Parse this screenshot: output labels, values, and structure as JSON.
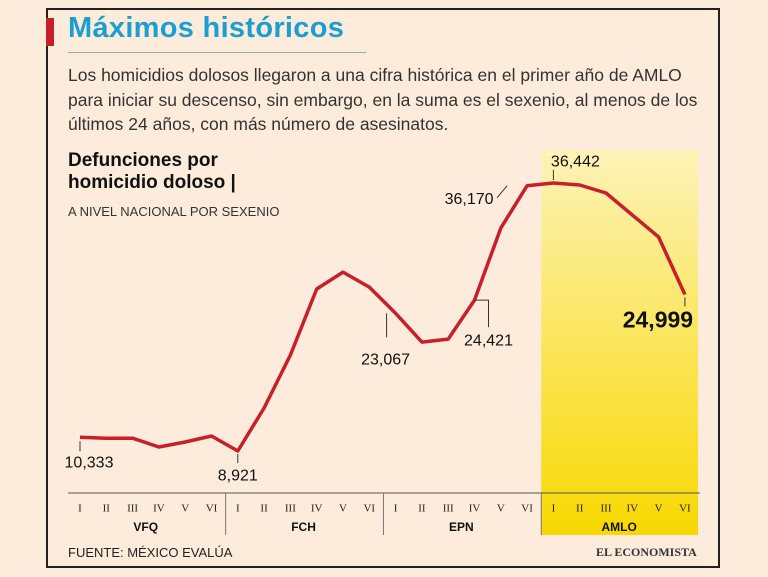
{
  "chart_data": {
    "type": "line",
    "title": "Máximos históricos",
    "subtitle": "Los homicidios dolosos llegaron a una cifra histórica en el primer año de AMLO para iniciar su descenso, sin embargo, en la suma es el sexenio, al menos de los últimos 24 años, con más número de asesinatos.",
    "chart_title": "Defunciones por homicidio doloso |",
    "chart_subtitle": "A NIVEL NACIONAL POR SEXENIO",
    "source": "FUENTE: MÉXICO EVALÚA",
    "brand": "EL ECONOMISTA",
    "categories": [
      "I",
      "II",
      "III",
      "IV",
      "V",
      "VI",
      "I",
      "II",
      "III",
      "IV",
      "V",
      "VI",
      "I",
      "II",
      "III",
      "IV",
      "V",
      "VI",
      "I",
      "II",
      "III",
      "IV",
      "V",
      "VI"
    ],
    "groups": [
      "VFQ",
      "FCH",
      "EPN",
      "AMLO"
    ],
    "highlight": "AMLO",
    "series": [
      {
        "name": "Defunciones por homicidio doloso",
        "color": "#c8202a",
        "values": [
          10333,
          10240,
          10240,
          9330,
          9850,
          10460,
          8921,
          13340,
          18780,
          25560,
          27300,
          25760,
          23067,
          20110,
          20420,
          24421,
          31820,
          36170,
          36442,
          36240,
          35420,
          33160,
          30900,
          24999
        ],
        "value_labels": [
          "10,333",
          null,
          null,
          null,
          null,
          null,
          "8,921",
          null,
          null,
          null,
          null,
          null,
          "23,067",
          null,
          null,
          "24,421",
          null,
          "36,170",
          "36,442",
          null,
          null,
          null,
          null,
          "24,999"
        ]
      }
    ],
    "ylim": [
      0,
      40000
    ]
  }
}
